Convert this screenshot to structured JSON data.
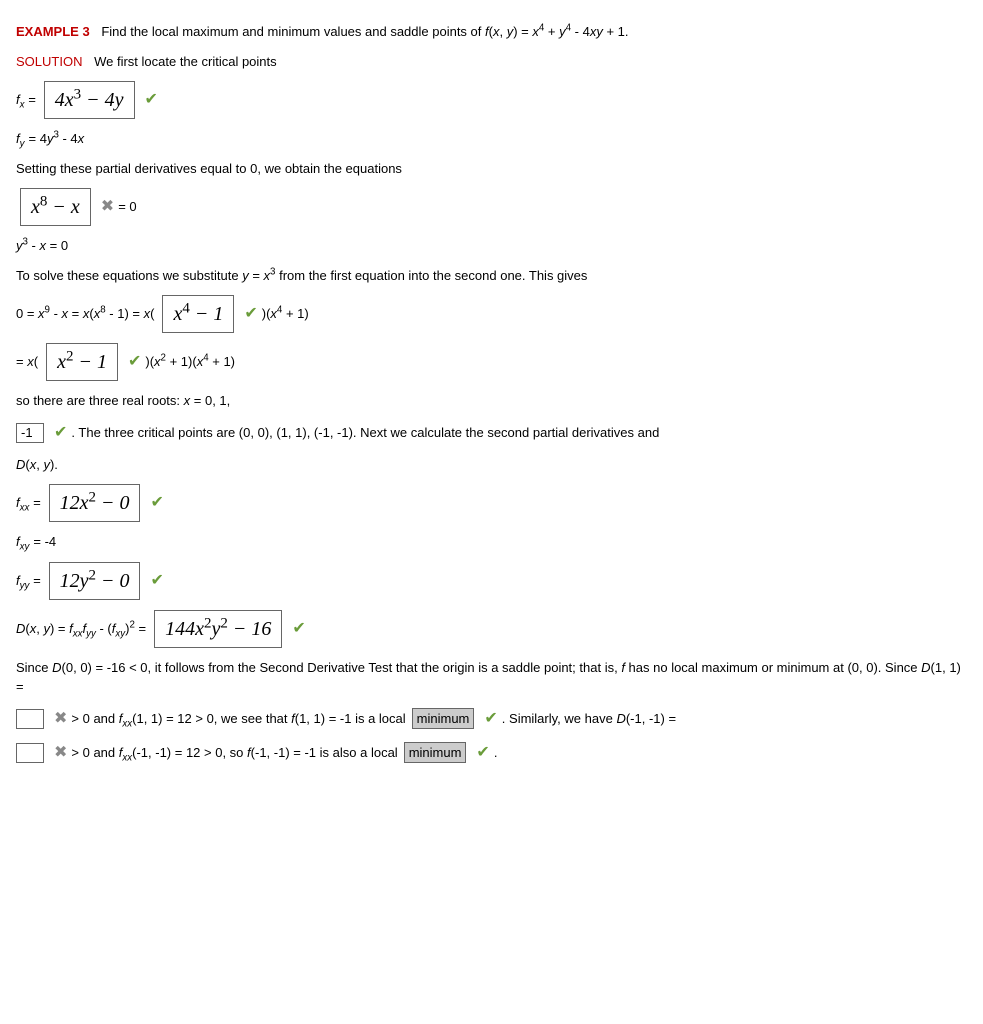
{
  "header": {
    "example_label": "EXAMPLE 3",
    "prompt": "Find the local maximum and minimum values and saddle points of f(x, y) = x⁴ + y⁴ - 4xy + 1."
  },
  "solution_label": "SOLUTION",
  "step_locate": "We first locate the critical points",
  "fx": {
    "lhs": "fₓ =",
    "box": "4x³ − 4y"
  },
  "fy_line": "f_y = 4y³ - 4x",
  "setting_text": "Setting these partial derivatives equal to 0, we obtain the equations",
  "eq1_box": "x⁸ − x",
  "eq1_rhs": "= 0",
  "eq2_line": "y³ - x = 0",
  "solve_text": "To solve these equations we substitute y = x³ from the first equation into the second one. This gives",
  "factor1": {
    "pre": "0 = x⁹ - x = x(x⁸ - 1) = x(",
    "box": "x⁴ − 1",
    "post": ")(x⁴ + 1)"
  },
  "factor2": {
    "pre": "= x(",
    "box": "x² − 1",
    "post": ")(x² + 1)(x⁴ + 1)"
  },
  "roots_text": "so there are three real roots: x = 0, 1,",
  "root3_box": "-1",
  "critical_points_text": ". The three critical points are (0, 0), (1, 1), (-1, -1). Next we calculate the second partial derivatives and D(x, y).",
  "fxx": {
    "lhs": "fₓₓ =",
    "box": "12x² − 0"
  },
  "fxy_line": "fₓᵧ = -4",
  "fyy": {
    "lhs": "fᵧᵧ =",
    "box": "12y² − 0"
  },
  "D": {
    "lhs": "D(x, y) = fₓₓfᵧᵧ - (fₓᵧ)² =",
    "box": "144x²y² − 16"
  },
  "saddle_text": "Since D(0, 0) = -16 < 0, it follows from the Second Derivative Test that the origin is a saddle point; that is, f has no local maximum or minimum at (0, 0). Since D(1, 1) =",
  "min1": {
    "mid": "> 0 and fₓₓ(1, 1) = 12 > 0, we see that f(1, 1) = -1 is a local",
    "box": "minimum",
    "tail": ". Similarly, we have D(-1, -1) ="
  },
  "min2": {
    "mid": "> 0 and fₓₓ(-1, -1) = 12 > 0, so f(-1, -1) = -1 is also a local",
    "box": "minimum",
    "tail": "."
  },
  "icons": {
    "check": "✔",
    "cross": "✖"
  }
}
